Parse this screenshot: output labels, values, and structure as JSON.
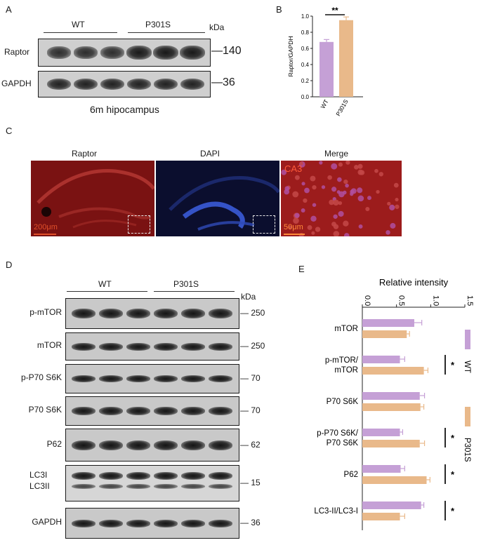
{
  "panels": {
    "A": {
      "letter": "A",
      "group_labels": [
        "WT",
        "P301S"
      ],
      "kda_label": "kDa",
      "rows": [
        {
          "label": "Raptor",
          "mw": "140",
          "intensities": [
            0.7,
            0.72,
            0.7,
            0.95,
            0.97,
            0.96
          ]
        },
        {
          "label": "GAPDH",
          "mw": "36",
          "intensities": [
            0.85,
            0.85,
            0.85,
            0.85,
            0.85,
            0.85
          ]
        }
      ],
      "caption": "6m hipocampus"
    },
    "B": {
      "letter": "B"
    },
    "C": {
      "letter": "C",
      "titles": [
        "Raptor",
        "DAPI",
        "Merge"
      ],
      "scale_labels": [
        "200μm",
        "50μm"
      ],
      "region_label": "CA3"
    },
    "D": {
      "letter": "D",
      "group_labels": [
        "WT",
        "P301S"
      ],
      "kda_label": "kDa",
      "rows": [
        {
          "label": "p-mTOR",
          "mw": "250"
        },
        {
          "label": "mTOR",
          "mw": "250"
        },
        {
          "label": "p-P70 S6K",
          "mw": "70"
        },
        {
          "label": "P70 S6K",
          "mw": "70"
        },
        {
          "label": "P62",
          "mw": "62"
        },
        {
          "label": "LC3I",
          "label2": "LC3II",
          "mw": "15"
        },
        {
          "label": "GAPDH",
          "mw": "36"
        }
      ]
    },
    "E": {
      "letter": "E"
    }
  },
  "chart_data": [
    {
      "type": "bar",
      "panel": "B",
      "categories": [
        "WT",
        "P301S"
      ],
      "values": [
        0.68,
        0.95
      ],
      "errors": [
        0.03,
        0.04
      ],
      "ylabel": "Raptor/GAPDH",
      "ylim": [
        0,
        1.0
      ],
      "yticks": [
        "0.0",
        "0.2",
        "0.4",
        "0.6",
        "0.8",
        "1.0"
      ],
      "significance": "**",
      "colors": [
        "#c5a0d6",
        "#e9b98a"
      ]
    },
    {
      "type": "bar",
      "panel": "E",
      "orientation": "horizontal",
      "title": "Relative intensity",
      "categories": [
        "mTOR",
        "p-mTOR/\nmTOR",
        "P70 S6K",
        "p-P70 S6K/\nP70 S6K",
        "P62",
        "LC3-II/LC3-I"
      ],
      "series": [
        {
          "name": "WT",
          "values": [
            0.76,
            0.55,
            0.84,
            0.55,
            0.56,
            0.86
          ],
          "errors": [
            0.11,
            0.07,
            0.07,
            0.04,
            0.06,
            0.04
          ],
          "color": "#c5a0d6"
        },
        {
          "name": "P301S",
          "values": [
            0.65,
            0.9,
            0.85,
            0.84,
            0.94,
            0.55
          ],
          "errors": [
            0.04,
            0.06,
            0.05,
            0.07,
            0.05,
            0.07
          ],
          "color": "#e9b98a"
        }
      ],
      "xlim": [
        0,
        1.5
      ],
      "xticks": [
        "0.0",
        "0.5",
        "1.0",
        "1.5"
      ],
      "significance": [
        "",
        "*",
        "",
        "*",
        "*",
        "*"
      ]
    }
  ]
}
